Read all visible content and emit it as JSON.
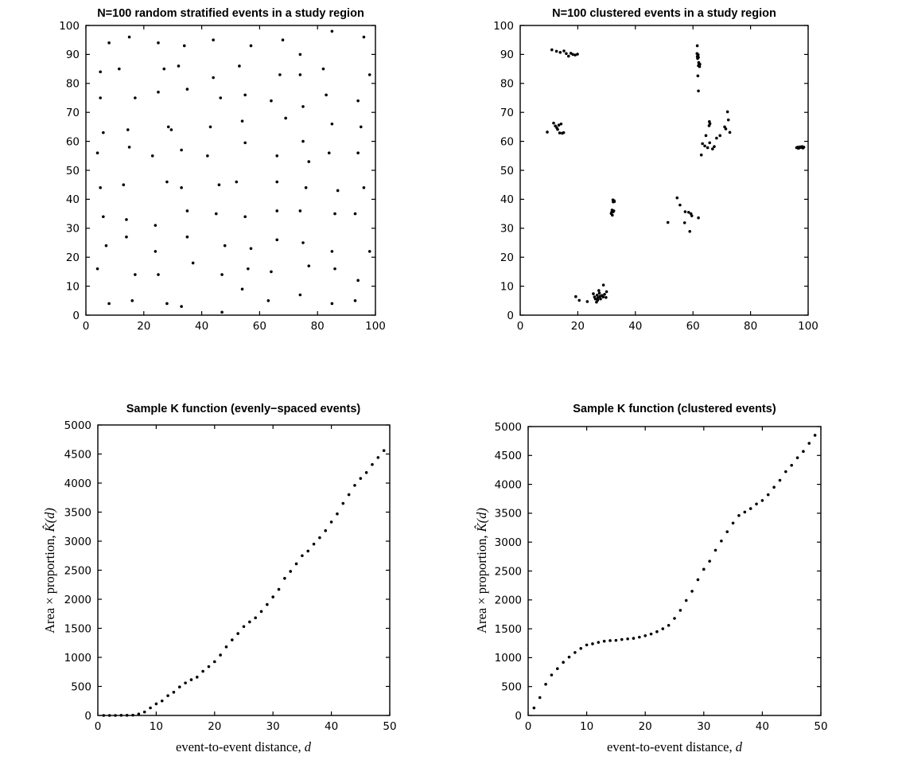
{
  "figure": {
    "background": "#ffffff",
    "ink_color": "#000000",
    "marker_color": "#000000"
  },
  "chart_data": [
    {
      "id": "stratified-scatter",
      "type": "scatter",
      "title": "N=100 random stratified events in a study region",
      "xlim": [
        0,
        100
      ],
      "ylim": [
        0,
        100
      ],
      "xticks": [
        0,
        20,
        40,
        60,
        80,
        100
      ],
      "yticks": [
        0,
        10,
        20,
        30,
        40,
        50,
        60,
        70,
        80,
        90,
        100
      ],
      "grid": false,
      "marker": {
        "shape": "dot",
        "color": "#000000"
      },
      "points": [
        [
          8,
          94
        ],
        [
          15,
          96
        ],
        [
          25,
          94
        ],
        [
          34,
          93
        ],
        [
          44,
          95
        ],
        [
          5,
          84
        ],
        [
          11.5,
          85
        ],
        [
          27,
          85
        ],
        [
          32,
          86
        ],
        [
          44,
          82
        ],
        [
          5,
          75
        ],
        [
          17,
          75
        ],
        [
          25,
          77
        ],
        [
          35,
          78
        ],
        [
          46.5,
          75
        ],
        [
          6,
          63
        ],
        [
          14.5,
          64
        ],
        [
          28.5,
          65
        ],
        [
          29.5,
          64
        ],
        [
          43,
          65
        ],
        [
          15,
          58
        ],
        [
          4,
          56
        ],
        [
          23,
          55
        ],
        [
          33,
          57
        ],
        [
          42,
          55
        ],
        [
          85,
          98
        ],
        [
          96,
          96
        ],
        [
          68,
          95
        ],
        [
          57,
          93
        ],
        [
          74,
          90
        ],
        [
          53,
          86
        ],
        [
          82,
          85
        ],
        [
          67,
          83
        ],
        [
          74,
          83
        ],
        [
          98,
          83
        ],
        [
          55,
          76
        ],
        [
          83,
          76
        ],
        [
          94,
          74
        ],
        [
          64,
          74
        ],
        [
          75,
          72
        ],
        [
          69,
          68
        ],
        [
          54,
          67
        ],
        [
          85,
          66
        ],
        [
          95,
          65
        ],
        [
          55,
          59.5
        ],
        [
          75,
          60
        ],
        [
          84,
          56
        ],
        [
          94,
          56
        ],
        [
          77,
          53
        ],
        [
          66,
          55
        ],
        [
          5,
          44
        ],
        [
          13,
          45
        ],
        [
          28,
          46
        ],
        [
          33,
          44
        ],
        [
          46,
          45
        ],
        [
          6,
          34
        ],
        [
          14,
          33
        ],
        [
          24,
          31
        ],
        [
          35,
          36
        ],
        [
          45,
          35
        ],
        [
          14,
          27
        ],
        [
          35,
          27
        ],
        [
          7,
          24
        ],
        [
          24,
          22
        ],
        [
          48,
          24
        ],
        [
          37,
          18
        ],
        [
          4,
          16
        ],
        [
          17,
          14
        ],
        [
          25,
          14
        ],
        [
          47,
          14
        ],
        [
          8,
          4
        ],
        [
          16,
          5
        ],
        [
          28,
          4
        ],
        [
          33,
          3
        ],
        [
          47,
          1
        ],
        [
          52,
          46
        ],
        [
          66,
          46
        ],
        [
          76,
          44
        ],
        [
          87,
          43
        ],
        [
          96,
          44
        ],
        [
          66,
          36
        ],
        [
          74,
          36
        ],
        [
          55,
          34
        ],
        [
          86,
          35
        ],
        [
          93,
          35
        ],
        [
          66,
          26
        ],
        [
          75,
          25
        ],
        [
          57,
          23
        ],
        [
          85,
          22
        ],
        [
          98,
          22
        ],
        [
          56,
          16
        ],
        [
          64,
          15
        ],
        [
          77,
          17
        ],
        [
          86,
          16
        ],
        [
          94,
          12
        ],
        [
          54,
          9
        ],
        [
          74,
          7
        ],
        [
          63,
          5
        ],
        [
          85,
          4
        ],
        [
          93,
          5
        ]
      ]
    },
    {
      "id": "clustered-scatter",
      "type": "scatter",
      "title": "N=100 clustered events in a study region",
      "xlim": [
        0,
        100
      ],
      "ylim": [
        0,
        100
      ],
      "xticks": [
        0,
        20,
        40,
        60,
        80,
        100
      ],
      "yticks": [
        0,
        10,
        20,
        30,
        40,
        50,
        60,
        70,
        80,
        90,
        100
      ],
      "grid": false,
      "marker": {
        "shape": "dot",
        "color": "#000000"
      },
      "points": [
        [
          11,
          91.6
        ],
        [
          12.6,
          91.1
        ],
        [
          13.9,
          90.7
        ],
        [
          15.2,
          91.2
        ],
        [
          16,
          90.3
        ],
        [
          16.8,
          89.4
        ],
        [
          17.6,
          90.4
        ],
        [
          18.3,
          90
        ],
        [
          19.1,
          89.8
        ],
        [
          19.9,
          90.1
        ],
        [
          9.4,
          63.2
        ],
        [
          11.6,
          66.3
        ],
        [
          12.2,
          65.3
        ],
        [
          12.7,
          64.7
        ],
        [
          13,
          64.1
        ],
        [
          13.4,
          65.6
        ],
        [
          13.7,
          62.9
        ],
        [
          14.2,
          66
        ],
        [
          14.6,
          62.8
        ],
        [
          15.1,
          63
        ],
        [
          61.5,
          93
        ],
        [
          61.4,
          90.3
        ],
        [
          61.8,
          89.9
        ],
        [
          61.5,
          89.3
        ],
        [
          61.9,
          89
        ],
        [
          61.6,
          88.6
        ],
        [
          62,
          87.2
        ],
        [
          62.1,
          86.9
        ],
        [
          62.4,
          86.6
        ],
        [
          61.9,
          86.1
        ],
        [
          62.3,
          85.8
        ],
        [
          61.7,
          82.6
        ],
        [
          61.9,
          77.4
        ],
        [
          72,
          70.2
        ],
        [
          72.3,
          67.4
        ],
        [
          65.7,
          66.8
        ],
        [
          65.9,
          66.1
        ],
        [
          65.6,
          65.4
        ],
        [
          71,
          65
        ],
        [
          71.4,
          64.3
        ],
        [
          72.8,
          63.1
        ],
        [
          69.4,
          62
        ],
        [
          68.2,
          61.1
        ],
        [
          64.5,
          62
        ],
        [
          63.3,
          59.2
        ],
        [
          64.1,
          58.4
        ],
        [
          65.1,
          57.8
        ],
        [
          65.8,
          59.5
        ],
        [
          66.8,
          57.4
        ],
        [
          67.4,
          58.2
        ],
        [
          62.9,
          55.3
        ],
        [
          96,
          57.8
        ],
        [
          96.4,
          58
        ],
        [
          96.6,
          57.6
        ],
        [
          96.8,
          57.7
        ],
        [
          97.2,
          58.1
        ],
        [
          97.5,
          57.9
        ],
        [
          97.9,
          58.2
        ],
        [
          98.2,
          57.7
        ],
        [
          98.5,
          58
        ],
        [
          32.2,
          39.8
        ],
        [
          32.6,
          39.5
        ],
        [
          32.7,
          39.2
        ],
        [
          32.3,
          39.1
        ],
        [
          31.9,
          36.3
        ],
        [
          32.5,
          36
        ],
        [
          32.3,
          35.7
        ],
        [
          31.8,
          35.6
        ],
        [
          31.6,
          35.1
        ],
        [
          32,
          34.5
        ],
        [
          19.3,
          6.4
        ],
        [
          20.5,
          5.1
        ],
        [
          23.3,
          4.7
        ],
        [
          25.4,
          7.4
        ],
        [
          25.8,
          6.3
        ],
        [
          26.1,
          5.6
        ],
        [
          26.5,
          4.5
        ],
        [
          26.7,
          6.9
        ],
        [
          26.9,
          5.2
        ],
        [
          27,
          6
        ],
        [
          27.3,
          8.5
        ],
        [
          27.5,
          7.6
        ],
        [
          27.7,
          6.5
        ],
        [
          27.9,
          5.6
        ],
        [
          28.4,
          6.8
        ],
        [
          28.8,
          6.3
        ],
        [
          28.9,
          10.4
        ],
        [
          29.3,
          7.2
        ],
        [
          29.8,
          6.1
        ],
        [
          30,
          8.1
        ],
        [
          54.5,
          40.5
        ],
        [
          55.5,
          38
        ],
        [
          57.3,
          35.7
        ],
        [
          58.5,
          35.5
        ],
        [
          59.3,
          35
        ],
        [
          59.6,
          34.3
        ],
        [
          61.9,
          33.6
        ],
        [
          51.3,
          32
        ],
        [
          57.1,
          31.9
        ],
        [
          58.9,
          28.9
        ]
      ]
    },
    {
      "id": "k-evenly",
      "type": "scatter",
      "title": "Sample K function (evenly−spaced events)",
      "xlabel": {
        "text": "event-to-event distance, ",
        "var": "d"
      },
      "ylabel": {
        "text": "Area × proportion, ",
        "var": "K̂(d)"
      },
      "xlim": [
        0,
        50
      ],
      "ylim": [
        0,
        5000
      ],
      "xticks": [
        0,
        10,
        20,
        30,
        40,
        50
      ],
      "yticks": [
        0,
        500,
        1000,
        1500,
        2000,
        2500,
        3000,
        3500,
        4000,
        4500,
        5000
      ],
      "grid": false,
      "marker": {
        "shape": "dot",
        "color": "#000000"
      },
      "x": [
        1,
        2,
        3,
        4,
        5,
        6,
        7,
        8,
        9,
        10,
        11,
        12,
        13,
        14,
        15,
        16,
        17,
        18,
        19,
        20,
        21,
        22,
        23,
        24,
        25,
        26,
        27,
        28,
        29,
        30,
        31,
        32,
        33,
        34,
        35,
        36,
        37,
        38,
        39,
        40,
        41,
        42,
        43,
        44,
        45,
        46,
        47,
        48,
        49
      ],
      "y": [
        0,
        0,
        0,
        2,
        3,
        5,
        25,
        60,
        130,
        200,
        250,
        340,
        400,
        490,
        560,
        615,
        660,
        760,
        840,
        925,
        1040,
        1180,
        1300,
        1410,
        1530,
        1610,
        1680,
        1790,
        1910,
        2040,
        2170,
        2360,
        2480,
        2610,
        2750,
        2830,
        2950,
        3060,
        3180,
        3330,
        3470,
        3650,
        3800,
        3960,
        4080,
        4180,
        4320,
        4440,
        4560
      ]
    },
    {
      "id": "k-clustered",
      "type": "scatter",
      "title": "Sample K function (clustered events)",
      "xlabel": {
        "text": "event-to-event distance, ",
        "var": "d"
      },
      "ylabel": {
        "text": "Area × proportion, ",
        "var": "K̂(d)"
      },
      "xlim": [
        0,
        50
      ],
      "ylim": [
        0,
        5000
      ],
      "xticks": [
        0,
        10,
        20,
        30,
        40,
        50
      ],
      "yticks": [
        0,
        500,
        1000,
        1500,
        2000,
        2500,
        3000,
        3500,
        4000,
        4500,
        5000
      ],
      "grid": false,
      "marker": {
        "shape": "dot",
        "color": "#000000"
      },
      "x": [
        1,
        2,
        3,
        4,
        5,
        6,
        7,
        8,
        9,
        10,
        11,
        12,
        13,
        14,
        15,
        16,
        17,
        18,
        19,
        20,
        21,
        22,
        23,
        24,
        25,
        26,
        27,
        28,
        29,
        30,
        31,
        32,
        33,
        34,
        35,
        36,
        37,
        38,
        39,
        40,
        41,
        42,
        43,
        44,
        45,
        46,
        47,
        48,
        49
      ],
      "y": [
        130,
        310,
        540,
        700,
        810,
        920,
        1010,
        1090,
        1160,
        1220,
        1240,
        1265,
        1285,
        1295,
        1300,
        1315,
        1325,
        1335,
        1355,
        1380,
        1410,
        1450,
        1500,
        1560,
        1680,
        1820,
        1990,
        2150,
        2350,
        2530,
        2670,
        2860,
        3020,
        3180,
        3330,
        3460,
        3520,
        3580,
        3660,
        3720,
        3820,
        3950,
        4070,
        4220,
        4330,
        4460,
        4570,
        4710,
        4850
      ]
    }
  ]
}
